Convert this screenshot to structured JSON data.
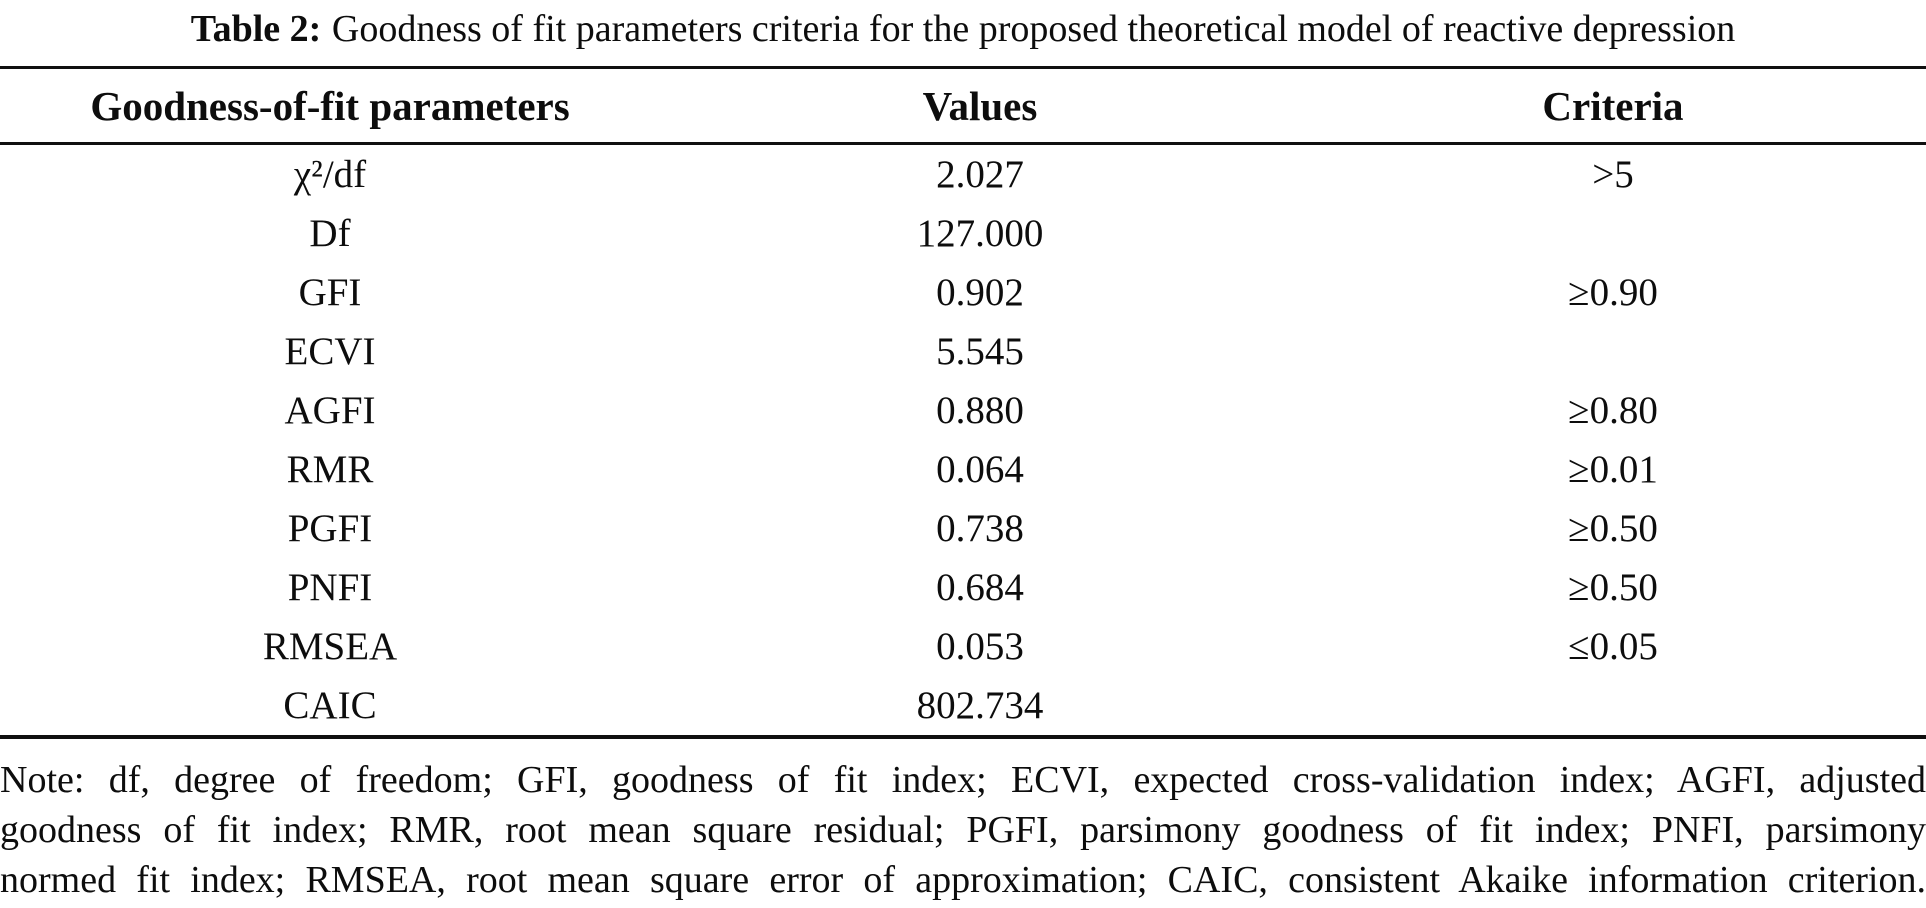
{
  "title": {
    "label": "Table 2:",
    "text": "Goodness of fit parameters criteria for the proposed theoretical model of reactive depression"
  },
  "table": {
    "columns": [
      "Goodness-of-fit parameters",
      "Values",
      "Criteria"
    ],
    "rows": [
      {
        "param": "χ²/df",
        "value": "2.027",
        "criteria": ">5"
      },
      {
        "param": "Df",
        "value": "127.000",
        "criteria": ""
      },
      {
        "param": "GFI",
        "value": "0.902",
        "criteria": "≥0.90"
      },
      {
        "param": "ECVI",
        "value": "5.545",
        "criteria": ""
      },
      {
        "param": "AGFI",
        "value": "0.880",
        "criteria": "≥0.80"
      },
      {
        "param": "RMR",
        "value": "0.064",
        "criteria": "≥0.01"
      },
      {
        "param": "PGFI",
        "value": "0.738",
        "criteria": "≥0.50"
      },
      {
        "param": "PNFI",
        "value": "0.684",
        "criteria": "≥0.50"
      },
      {
        "param": "RMSEA",
        "value": "0.053",
        "criteria": "≤0.05"
      },
      {
        "param": "CAIC",
        "value": "802.734",
        "criteria": ""
      }
    ]
  },
  "note": {
    "lines": [
      "Note: df, degree of freedom; GFI, goodness of fit index; ECVI, expected cross-validation index; AGFI, adjusted",
      "goodness of fit index; RMR, root mean square residual; PGFI, parsimony goodness of fit index; PNFI, parsimony",
      "normed fit index; RMSEA, root mean square error of approximation; CAIC, consistent Akaike information criterion."
    ]
  },
  "colors": {
    "text": "#0d0d0d",
    "rule": "#101010",
    "background": "#ffffff"
  }
}
